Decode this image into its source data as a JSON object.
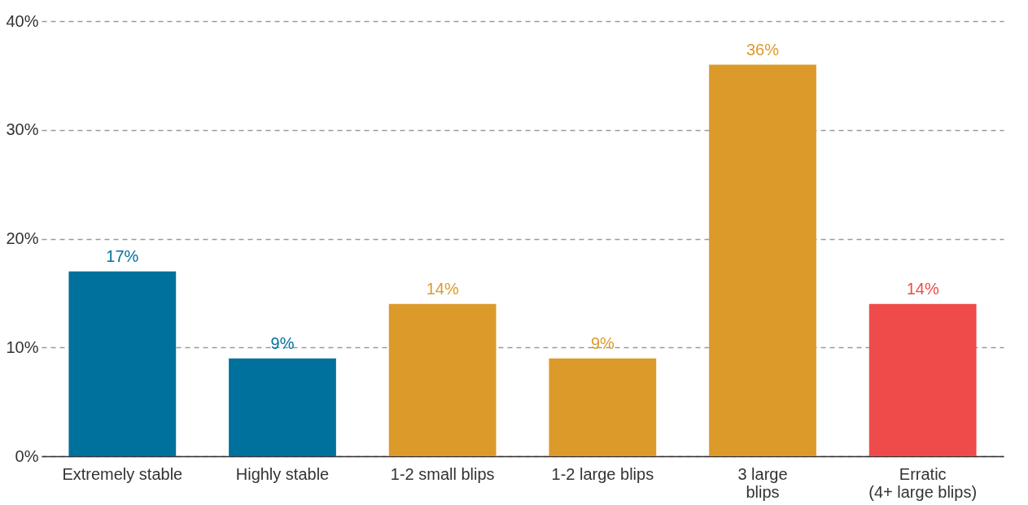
{
  "chart_data": {
    "type": "bar",
    "categories": [
      "Extremely stable",
      "Highly stable",
      "1-2 small blips",
      "1-2 large blips",
      "3 large\nblips",
      "Erratic\n(4+ large blips)"
    ],
    "values": [
      17,
      9,
      14,
      9,
      36,
      14
    ],
    "colors": [
      "#00719c",
      "#00719c",
      "#dc9a2a",
      "#dc9a2a",
      "#dc9a2a",
      "#ef4b4b"
    ],
    "value_labels": [
      "17%",
      "9%",
      "14%",
      "9%",
      "36%",
      "14%"
    ],
    "ylim": [
      0,
      40
    ],
    "yticks": [
      {
        "value": 0,
        "label": "0%"
      },
      {
        "value": 10,
        "label": "10%"
      },
      {
        "value": 20,
        "label": "20%"
      },
      {
        "value": 30,
        "label": "30%"
      },
      {
        "value": 40,
        "label": "40%"
      }
    ],
    "grid": "y"
  }
}
